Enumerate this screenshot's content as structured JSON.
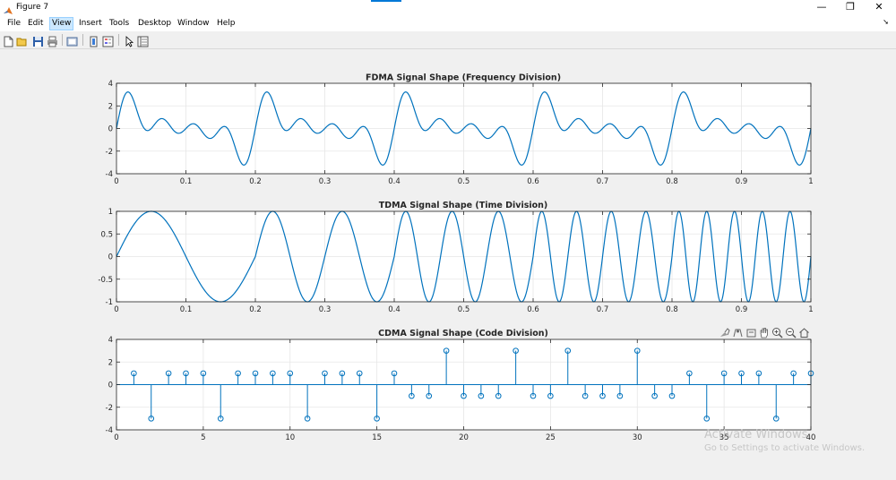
{
  "window": {
    "title": "Figure 7",
    "controls": {
      "minimize": "—",
      "maximize": "❐",
      "close": "✕"
    }
  },
  "menubar": {
    "items": [
      "File",
      "Edit",
      "View",
      "Insert",
      "Tools",
      "Desktop",
      "Window",
      "Help"
    ],
    "active_index": 2
  },
  "toolbar": {
    "icons": [
      "new-figure-icon",
      "open-file-icon",
      "save-icon",
      "print-icon",
      "print-preview-icon",
      "link-plot-icon",
      "insert-colorbar-icon",
      "insert-legend-icon",
      "edit-plot-icon",
      "property-inspector-icon"
    ]
  },
  "axes_toolbar": {
    "icons": [
      "brush-icon",
      "data-tips-icon",
      "export-icon",
      "pan-icon",
      "zoom-in-icon",
      "zoom-out-icon",
      "home-icon"
    ]
  },
  "watermark": {
    "line1": "Activate Windows",
    "line2": "Go to Settings to activate Windows."
  },
  "colors": {
    "line": "#0072bd",
    "grid": "#e6e6e6",
    "axes_bg": "#ffffff"
  },
  "chart_data": [
    {
      "type": "line",
      "title": "FDMA Signal Shape (Frequency Division)",
      "xlim": [
        0,
        1
      ],
      "ylim": [
        -4,
        4
      ],
      "xticks": [
        0,
        0.1,
        0.2,
        0.3,
        0.4,
        0.5,
        0.6,
        0.7,
        0.8,
        0.9,
        1
      ],
      "xtick_labels": [
        "0",
        "0.1",
        "0.2",
        "0.3",
        "0.4",
        "0.5",
        "0.6",
        "0.7",
        "0.8",
        "0.9",
        "1"
      ],
      "yticks": [
        -4,
        -2,
        0,
        2,
        4
      ],
      "ytick_labels": [
        "-4",
        "-2",
        "0",
        "2",
        "4"
      ],
      "grid": true,
      "series": [
        {
          "formula": "sin(2*pi*5*t) + sin(2*pi*10*t) + sin(2*pi*15*t) + sin(2*pi*20*t)",
          "x_range": [
            0,
            1
          ]
        }
      ]
    },
    {
      "type": "line",
      "title": "TDMA Signal Shape (Time Division)",
      "xlim": [
        0,
        1
      ],
      "ylim": [
        -1,
        1
      ],
      "xticks": [
        0,
        0.1,
        0.2,
        0.3,
        0.4,
        0.5,
        0.6,
        0.7,
        0.8,
        0.9,
        1
      ],
      "xtick_labels": [
        "0",
        "0.1",
        "0.2",
        "0.3",
        "0.4",
        "0.5",
        "0.6",
        "0.7",
        "0.8",
        "0.9",
        "1"
      ],
      "yticks": [
        -1,
        -0.5,
        0,
        0.5,
        1
      ],
      "ytick_labels": [
        "-1",
        "-0.5",
        "0",
        "0.5",
        "1"
      ],
      "grid": true,
      "series": [
        {
          "formula": "sin(2*pi*f*t), f = 5 on [0,0.2], 10 on [0.2,0.4], 15 on [0.4,0.6], 20 on [0.6,0.8], 25 on [0.8,1]",
          "segments": [
            {
              "t": [
                0,
                0.2
              ],
              "freq": 5
            },
            {
              "t": [
                0.2,
                0.4
              ],
              "freq": 10
            },
            {
              "t": [
                0.4,
                0.6
              ],
              "freq": 15
            },
            {
              "t": [
                0.6,
                0.8
              ],
              "freq": 20
            },
            {
              "t": [
                0.8,
                1.0
              ],
              "freq": 25
            }
          ]
        }
      ]
    },
    {
      "type": "stem",
      "title": "CDMA Signal Shape (Code Division)",
      "xlim": [
        0,
        40
      ],
      "ylim": [
        -4,
        4
      ],
      "xticks": [
        0,
        5,
        10,
        15,
        20,
        25,
        30,
        35,
        40
      ],
      "xtick_labels": [
        "0",
        "5",
        "10",
        "15",
        "20",
        "25",
        "30",
        "35",
        "40"
      ],
      "yticks": [
        -4,
        -2,
        0,
        2,
        4
      ],
      "ytick_labels": [
        "-4",
        "-2",
        "0",
        "2",
        "4"
      ],
      "grid": true,
      "x": [
        1,
        2,
        3,
        4,
        5,
        6,
        7,
        8,
        9,
        10,
        11,
        12,
        13,
        14,
        15,
        16,
        17,
        18,
        19,
        20,
        21,
        22,
        23,
        24,
        25,
        26,
        27,
        28,
        29,
        30,
        31,
        32,
        33,
        34,
        35,
        36,
        37,
        38,
        39,
        40
      ],
      "values": [
        1,
        -3,
        1,
        1,
        1,
        -3,
        1,
        1,
        1,
        1,
        -3,
        1,
        1,
        1,
        -3,
        1,
        -1,
        -1,
        3,
        -1,
        -1,
        -1,
        3,
        -1,
        -1,
        3,
        -1,
        -1,
        -1,
        3,
        -1,
        -1,
        1,
        -3,
        1,
        1,
        1,
        -3,
        1,
        1
      ]
    }
  ]
}
